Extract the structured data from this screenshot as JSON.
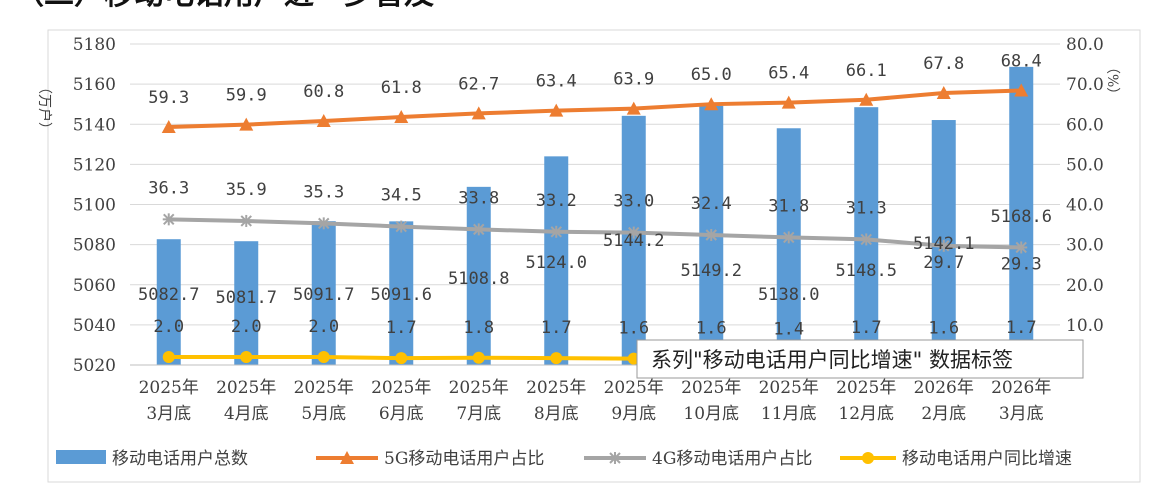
{
  "header_fragment": "（二）移动电话用户进一步普及",
  "chart_data": {
    "type": "bar",
    "title": "",
    "left_axis": {
      "unit": "（万户）",
      "ylim": [
        5020,
        5180
      ],
      "ticks": [
        5020,
        5040,
        5060,
        5080,
        5100,
        5120,
        5140,
        5160,
        5180
      ]
    },
    "right_axis": {
      "unit": "（%）",
      "ylim": [
        0,
        80
      ],
      "ticks": [
        "0",
        "10.0",
        "20.0",
        "30.0",
        "40.0",
        "50.0",
        "60.0",
        "70.0",
        "80.0"
      ]
    },
    "categories": [
      [
        "2025年",
        "3月底"
      ],
      [
        "2025年",
        "4月底"
      ],
      [
        "2025年",
        "5月底"
      ],
      [
        "2025年",
        "6月底"
      ],
      [
        "2025年",
        "7月底"
      ],
      [
        "2025年",
        "8月底"
      ],
      [
        "2025年",
        "9月底"
      ],
      [
        "2025年",
        "10月底"
      ],
      [
        "2025年",
        "11月底"
      ],
      [
        "2025年",
        "12月底"
      ],
      [
        "2026年",
        "2月底"
      ],
      [
        "2026年",
        "3月底"
      ]
    ],
    "series": [
      {
        "name": "移动电话用户总数",
        "type": "bar",
        "axis": "left",
        "color": "#5B9BD5",
        "values": [
          5082.7,
          5081.7,
          5091.7,
          5091.6,
          5108.8,
          5124.0,
          5144.2,
          5149.2,
          5138.0,
          5148.5,
          5142.1,
          5168.6
        ],
        "labels": [
          "5082.7",
          "5081.7",
          "5091.7",
          "5091.6",
          "5108.8",
          "5124.0",
          "5144.2",
          "5149.2",
          "5138.0",
          "5148.5",
          "5142.1",
          "5168.6"
        ]
      },
      {
        "name": "5G移动电话用户占比",
        "type": "line",
        "marker": "triangle",
        "axis": "right",
        "color": "#ED7D31",
        "values": [
          59.3,
          59.9,
          60.8,
          61.8,
          62.7,
          63.4,
          63.9,
          65.0,
          65.4,
          66.1,
          67.8,
          68.4
        ],
        "labels": [
          "59.3",
          "59.9",
          "60.8",
          "61.8",
          "62.7",
          "63.4",
          "63.9",
          "65.0",
          "65.4",
          "66.1",
          "67.8",
          "68.4"
        ]
      },
      {
        "name": "4G移动电话用户占比",
        "type": "line",
        "marker": "star",
        "axis": "right",
        "color": "#A5A5A5",
        "values": [
          36.3,
          35.9,
          35.3,
          34.5,
          33.8,
          33.2,
          33.0,
          32.4,
          31.8,
          31.3,
          29.7,
          29.3
        ],
        "labels": [
          "36.3",
          "35.9",
          "35.3",
          "34.5",
          "33.8",
          "33.2",
          "33.0",
          "32.4",
          "31.8",
          "31.3",
          "29.7",
          "29.3"
        ]
      },
      {
        "name": "移动电话用户同比增速",
        "type": "line",
        "marker": "circle",
        "axis": "right",
        "color": "#FFC000",
        "values": [
          2.0,
          2.0,
          2.0,
          1.7,
          1.8,
          1.7,
          1.6,
          1.6,
          1.4,
          1.7,
          1.6,
          1.7
        ],
        "labels": [
          "2.0",
          "2.0",
          "2.0",
          "1.7",
          "1.8",
          "1.7",
          "1.6",
          "1.6",
          "1.4",
          "1.7",
          "1.6",
          "1.7"
        ]
      }
    ],
    "legend_position": "bottom",
    "grid": true
  },
  "tooltip": {
    "text": "系列\"移动电话用户同比增速\" 数据标签"
  }
}
